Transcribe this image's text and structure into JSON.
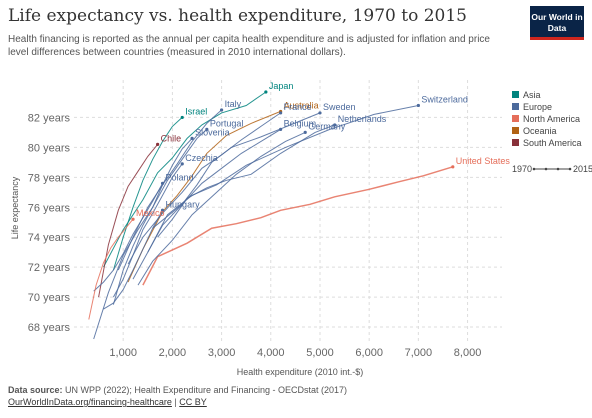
{
  "header": {
    "title": "Life expectancy vs. health expenditure, 1970 to 2015",
    "subtitle": "Health financing is reported as the annual per capita health expenditure and is adjusted for inflation and price level differences between countries (measured in 2010 international dollars).",
    "logo": "Our World in Data"
  },
  "footer": {
    "source_label": "Data source:",
    "source_text": "UN WPP (2022); Health Expenditure and Financing - OECDstat (2017)",
    "link_text": "OurWorldInData.org/financing-healthcare",
    "separator": " | ",
    "license_text": "CC BY"
  },
  "colors": {
    "Asia": "#00847e",
    "Europe": "#4c6a9c",
    "North America": "#e56e5a",
    "Oceania": "#b16214",
    "South America": "#883039",
    "grid": "#dddddd"
  },
  "chart_data": {
    "type": "scatter",
    "mode": "connected",
    "title": "Life expectancy vs. health expenditure, 1970 to 2015",
    "xlabel": "Health expenditure (2010 int.-$)",
    "ylabel": "Life expectancy",
    "xlim": [
      0,
      8700
    ],
    "ylim": [
      67,
      84.5
    ],
    "x_ticks": [
      1000,
      2000,
      3000,
      4000,
      5000,
      6000,
      7000,
      8000
    ],
    "x_tick_labels": [
      "1,000",
      "2,000",
      "3,000",
      "4,000",
      "5,000",
      "6,000",
      "7,000",
      "8,000"
    ],
    "y_ticks": [
      68,
      70,
      72,
      74,
      76,
      78,
      80,
      82
    ],
    "y_tick_labels": [
      "68 years",
      "70 years",
      "72 years",
      "74 years",
      "76 years",
      "78 years",
      "80 years",
      "82 years"
    ],
    "grid": true,
    "legend": {
      "position": "right",
      "entries": [
        "Asia",
        "Europe",
        "North America",
        "Oceania",
        "South America"
      ],
      "time_start": "1970",
      "time_end": "2015"
    },
    "series": [
      {
        "name": "United States",
        "region": "North America",
        "label": true,
        "x": [
          1400,
          1700,
          2300,
          2800,
          3300,
          3800,
          4200,
          4800,
          5300,
          6000,
          6600,
          7100,
          7700
        ],
        "y": [
          70.8,
          72.7,
          73.6,
          74.6,
          74.9,
          75.3,
          75.8,
          76.2,
          76.7,
          77.2,
          77.7,
          78.1,
          78.7
        ]
      },
      {
        "name": "Japan",
        "region": "Asia",
        "label": true,
        "x": [
          600,
          1000,
          1400,
          1700,
          2000,
          2300,
          2600,
          3000,
          3500,
          3900
        ],
        "y": [
          72.0,
          74.5,
          76.5,
          78.3,
          79.3,
          80.6,
          81.5,
          82.3,
          82.8,
          83.7
        ]
      },
      {
        "name": "Australia",
        "region": "Oceania",
        "label": true,
        "x": [
          1100,
          1400,
          1800,
          2100,
          2400,
          2700,
          3100,
          3600,
          4200
        ],
        "y": [
          71.0,
          73.2,
          75.7,
          76.8,
          78.1,
          79.6,
          80.8,
          81.6,
          82.4
        ]
      },
      {
        "name": "Switzerland",
        "region": "Europe",
        "label": true,
        "x": [
          1500,
          1900,
          2400,
          2900,
          3500,
          4300,
          5200,
          6100,
          7000
        ],
        "y": [
          73.0,
          75.5,
          76.8,
          77.5,
          78.8,
          80.0,
          81.2,
          82.2,
          82.8
        ]
      },
      {
        "name": "Sweden",
        "region": "Europe",
        "label": true,
        "x": [
          1600,
          1900,
          2200,
          2500,
          2800,
          3200,
          3800,
          4400,
          5000
        ],
        "y": [
          74.6,
          75.4,
          76.2,
          77.5,
          79.0,
          80.0,
          80.7,
          81.5,
          82.3
        ]
      },
      {
        "name": "Netherlands",
        "region": "Europe",
        "label": true,
        "x": [
          1700,
          2000,
          2300,
          2700,
          3100,
          3600,
          4200,
          4900,
          5300
        ],
        "y": [
          74.0,
          75.2,
          76.6,
          77.3,
          77.8,
          78.2,
          79.6,
          81.0,
          81.5
        ]
      },
      {
        "name": "Germany",
        "region": "Europe",
        "label": true,
        "x": [
          1300,
          1600,
          2000,
          2400,
          2900,
          3300,
          3800,
          4300,
          4700
        ],
        "y": [
          70.8,
          72.4,
          73.8,
          75.5,
          77.0,
          78.2,
          79.4,
          80.4,
          81.0
        ]
      },
      {
        "name": "Belgium",
        "region": "Europe",
        "label": true,
        "x": [
          1200,
          1500,
          1800,
          2200,
          2600,
          3000,
          3400,
          3900,
          4200
        ],
        "y": [
          71.2,
          73.0,
          74.8,
          76.2,
          77.6,
          78.6,
          79.6,
          80.6,
          81.2
        ]
      },
      {
        "name": "France",
        "region": "Europe",
        "label": true,
        "x": [
          1100,
          1400,
          1800,
          2200,
          2600,
          3000,
          3400,
          3800,
          4200
        ],
        "y": [
          72.2,
          74.0,
          75.6,
          77.0,
          78.6,
          79.5,
          80.5,
          81.4,
          82.3
        ]
      },
      {
        "name": "Italy",
        "region": "Europe",
        "label": true,
        "x": [
          900,
          1200,
          1500,
          1800,
          2100,
          2400,
          2700,
          3000
        ],
        "y": [
          71.8,
          74.0,
          76.0,
          77.5,
          78.9,
          80.4,
          81.6,
          82.5
        ]
      },
      {
        "name": "Israel",
        "region": "Asia",
        "label": true,
        "x": [
          800,
          1000,
          1200,
          1400,
          1600,
          1800,
          2000,
          2200
        ],
        "y": [
          71.8,
          74.0,
          76.0,
          77.8,
          79.2,
          80.4,
          81.4,
          82.0
        ]
      },
      {
        "name": "Portugal",
        "region": "Europe",
        "label": true,
        "x": [
          400,
          700,
          1000,
          1300,
          1600,
          1900,
          2200,
          2500,
          2700
        ],
        "y": [
          67.2,
          70.3,
          72.8,
          74.5,
          76.0,
          77.8,
          79.2,
          80.6,
          81.2
        ]
      },
      {
        "name": "Slovenia",
        "region": "Europe",
        "label": true,
        "x": [
          800,
          1000,
          1200,
          1400,
          1600,
          1800,
          2000,
          2200,
          2400
        ],
        "y": [
          69.5,
          71.8,
          73.4,
          74.8,
          76.0,
          77.5,
          78.8,
          79.9,
          80.6
        ]
      },
      {
        "name": "Chile",
        "region": "South America",
        "label": true,
        "x": [
          500,
          700,
          900,
          1100,
          1300,
          1500,
          1700
        ],
        "y": [
          70.0,
          73.5,
          75.8,
          77.4,
          78.4,
          79.4,
          80.2
        ]
      },
      {
        "name": "Czechia",
        "region": "Europe",
        "label": true,
        "x": [
          800,
          1000,
          1200,
          1400,
          1600,
          1800,
          2000,
          2200
        ],
        "y": [
          70.0,
          71.2,
          72.8,
          74.5,
          75.6,
          76.8,
          78.0,
          78.9
        ]
      },
      {
        "name": "Poland",
        "region": "Europe",
        "label": true,
        "x": [
          400,
          600,
          800,
          1000,
          1200,
          1400,
          1600,
          1800
        ],
        "y": [
          70.4,
          71.0,
          71.8,
          72.9,
          74.2,
          75.3,
          76.4,
          77.6
        ]
      },
      {
        "name": "Hungary",
        "region": "Europe",
        "label": true,
        "x": [
          600,
          800,
          1000,
          1200,
          1400,
          1600,
          1800
        ],
        "y": [
          69.2,
          69.6,
          70.5,
          71.8,
          73.2,
          74.6,
          75.8
        ]
      },
      {
        "name": "Mexico",
        "region": "North America",
        "label": true,
        "x": [
          300,
          450,
          600,
          750,
          900,
          1050,
          1200
        ],
        "y": [
          68.5,
          70.8,
          72.3,
          73.3,
          74.0,
          74.6,
          75.2
        ]
      }
    ]
  }
}
